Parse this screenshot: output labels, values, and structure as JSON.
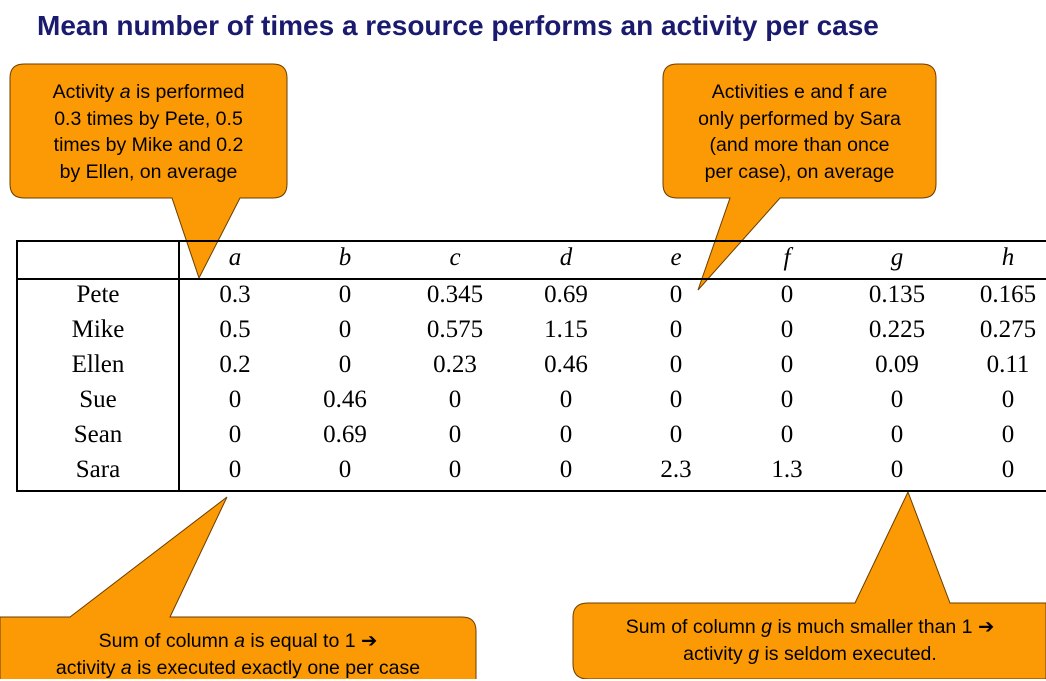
{
  "title": "Mean number of times a resource performs an activity per case",
  "colors": {
    "callout_fill": "#fb9a04",
    "title": "#1a1a6e"
  },
  "callouts": {
    "top_left": {
      "lines": [
        "Activity <i>a</i> is performed",
        "0.3 times by Pete, 0.5",
        "times by Mike and 0.2",
        "by Ellen, on average"
      ]
    },
    "top_right": {
      "lines": [
        "Activities e and f are",
        "only performed by Sara",
        "(and more than once",
        "per case), on average"
      ]
    },
    "bottom_left": {
      "lines": [
        "Sum of column <i>a</i> is equal to 1 ➔",
        "activity <i>a</i> is executed exactly one per case"
      ]
    },
    "bottom_right": {
      "lines": [
        "Sum of column <i>g</i> is much smaller than 1 ➔",
        "activity <i>g</i> is seldom executed."
      ]
    }
  },
  "table": {
    "columns": [
      "a",
      "b",
      "c",
      "d",
      "e",
      "f",
      "g",
      "h"
    ],
    "rows": [
      {
        "name": "Pete",
        "values": [
          "0.3",
          "0",
          "0.345",
          "0.69",
          "0",
          "0",
          "0.135",
          "0.165"
        ]
      },
      {
        "name": "Mike",
        "values": [
          "0.5",
          "0",
          "0.575",
          "1.15",
          "0",
          "0",
          "0.225",
          "0.275"
        ]
      },
      {
        "name": "Ellen",
        "values": [
          "0.2",
          "0",
          "0.23",
          "0.46",
          "0",
          "0",
          "0.09",
          "0.11"
        ]
      },
      {
        "name": "Sue",
        "values": [
          "0",
          "0.46",
          "0",
          "0",
          "0",
          "0",
          "0",
          "0"
        ]
      },
      {
        "name": "Sean",
        "values": [
          "0",
          "0.69",
          "0",
          "0",
          "0",
          "0",
          "0",
          "0"
        ]
      },
      {
        "name": "Sara",
        "values": [
          "0",
          "0",
          "0",
          "0",
          "2.3",
          "1.3",
          "0",
          "0"
        ]
      }
    ]
  }
}
